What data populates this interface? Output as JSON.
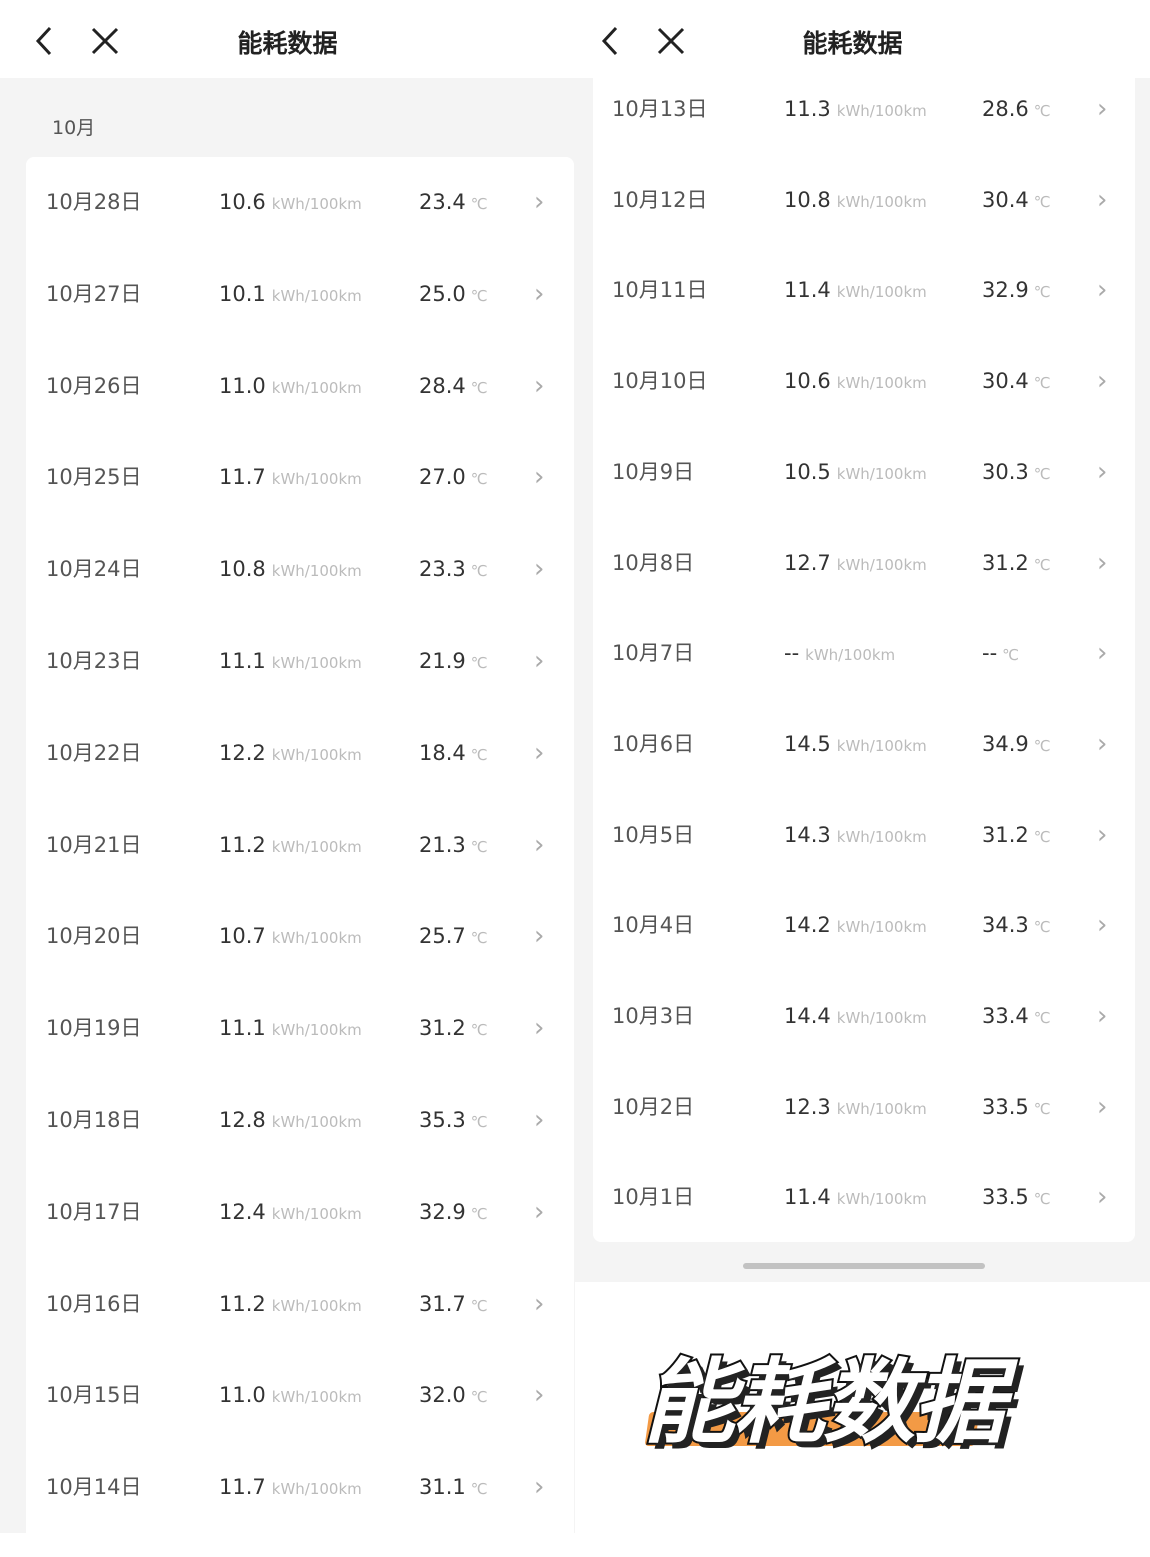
{
  "header": {
    "title": "能耗数据",
    "back_icon": "chevron-left-icon",
    "close_icon": "close-icon"
  },
  "left": {
    "month": "10月",
    "rows": [
      {
        "date": "10月28日",
        "consumption": "10.6",
        "unit": "kWh/100km",
        "temp": "23.4",
        "temp_unit": "℃"
      },
      {
        "date": "10月27日",
        "consumption": "10.1",
        "unit": "kWh/100km",
        "temp": "25.0",
        "temp_unit": "℃"
      },
      {
        "date": "10月26日",
        "consumption": "11.0",
        "unit": "kWh/100km",
        "temp": "28.4",
        "temp_unit": "℃"
      },
      {
        "date": "10月25日",
        "consumption": "11.7",
        "unit": "kWh/100km",
        "temp": "27.0",
        "temp_unit": "℃"
      },
      {
        "date": "10月24日",
        "consumption": "10.8",
        "unit": "kWh/100km",
        "temp": "23.3",
        "temp_unit": "℃"
      },
      {
        "date": "10月23日",
        "consumption": "11.1",
        "unit": "kWh/100km",
        "temp": "21.9",
        "temp_unit": "℃"
      },
      {
        "date": "10月22日",
        "consumption": "12.2",
        "unit": "kWh/100km",
        "temp": "18.4",
        "temp_unit": "℃"
      },
      {
        "date": "10月21日",
        "consumption": "11.2",
        "unit": "kWh/100km",
        "temp": "21.3",
        "temp_unit": "℃"
      },
      {
        "date": "10月20日",
        "consumption": "10.7",
        "unit": "kWh/100km",
        "temp": "25.7",
        "temp_unit": "℃"
      },
      {
        "date": "10月19日",
        "consumption": "11.1",
        "unit": "kWh/100km",
        "temp": "31.2",
        "temp_unit": "℃"
      },
      {
        "date": "10月18日",
        "consumption": "12.8",
        "unit": "kWh/100km",
        "temp": "35.3",
        "temp_unit": "℃"
      },
      {
        "date": "10月17日",
        "consumption": "12.4",
        "unit": "kWh/100km",
        "temp": "32.9",
        "temp_unit": "℃"
      },
      {
        "date": "10月16日",
        "consumption": "11.2",
        "unit": "kWh/100km",
        "temp": "31.7",
        "temp_unit": "℃"
      },
      {
        "date": "10月15日",
        "consumption": "11.0",
        "unit": "kWh/100km",
        "temp": "32.0",
        "temp_unit": "℃"
      },
      {
        "date": "10月14日",
        "consumption": "11.7",
        "unit": "kWh/100km",
        "temp": "31.1",
        "temp_unit": "℃"
      }
    ]
  },
  "right": {
    "rows": [
      {
        "date": "10月13日",
        "consumption": "11.3",
        "unit": "kWh/100km",
        "temp": "28.6",
        "temp_unit": "℃"
      },
      {
        "date": "10月12日",
        "consumption": "10.8",
        "unit": "kWh/100km",
        "temp": "30.4",
        "temp_unit": "℃"
      },
      {
        "date": "10月11日",
        "consumption": "11.4",
        "unit": "kWh/100km",
        "temp": "32.9",
        "temp_unit": "℃"
      },
      {
        "date": "10月10日",
        "consumption": "10.6",
        "unit": "kWh/100km",
        "temp": "30.4",
        "temp_unit": "℃"
      },
      {
        "date": "10月9日",
        "consumption": "10.5",
        "unit": "kWh/100km",
        "temp": "30.3",
        "temp_unit": "℃"
      },
      {
        "date": "10月8日",
        "consumption": "12.7",
        "unit": "kWh/100km",
        "temp": "31.2",
        "temp_unit": "℃"
      },
      {
        "date": "10月7日",
        "consumption": "--",
        "unit": "kWh/100km",
        "temp": "--",
        "temp_unit": "℃"
      },
      {
        "date": "10月6日",
        "consumption": "14.5",
        "unit": "kWh/100km",
        "temp": "34.9",
        "temp_unit": "℃"
      },
      {
        "date": "10月5日",
        "consumption": "14.3",
        "unit": "kWh/100km",
        "temp": "31.2",
        "temp_unit": "℃"
      },
      {
        "date": "10月4日",
        "consumption": "14.2",
        "unit": "kWh/100km",
        "temp": "34.3",
        "temp_unit": "℃"
      },
      {
        "date": "10月3日",
        "consumption": "14.4",
        "unit": "kWh/100km",
        "temp": "33.4",
        "temp_unit": "℃"
      },
      {
        "date": "10月2日",
        "consumption": "12.3",
        "unit": "kWh/100km",
        "temp": "33.5",
        "temp_unit": "℃"
      },
      {
        "date": "10月1日",
        "consumption": "11.4",
        "unit": "kWh/100km",
        "temp": "33.5",
        "temp_unit": "℃"
      }
    ]
  },
  "banner": {
    "text": "能耗数据",
    "accent": "#f39a45"
  },
  "chevron": "›"
}
